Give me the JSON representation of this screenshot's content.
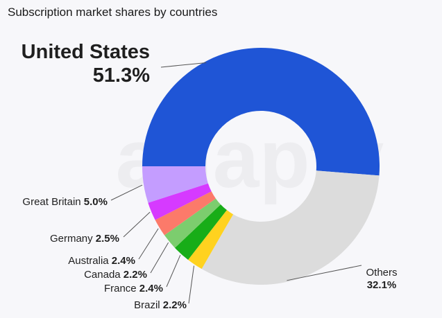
{
  "chart_data": {
    "type": "pie",
    "title": "Subscription market shares by countries",
    "watermark": "adapty",
    "slices": [
      {
        "label": "United States",
        "value": 51.3,
        "value_label": "51.3%",
        "color": "#1f55d6"
      },
      {
        "label": "Others",
        "value": 32.1,
        "value_label": "32.1%",
        "color": "#dcdcdc"
      },
      {
        "label": "Brazil",
        "value": 2.2,
        "value_label": "2.2%",
        "color": "#ffd21f"
      },
      {
        "label": "France",
        "value": 2.4,
        "value_label": "2.4%",
        "color": "#18ad18"
      },
      {
        "label": "Canada",
        "value": 2.2,
        "value_label": "2.2%",
        "color": "#7ccd6e"
      },
      {
        "label": "Australia",
        "value": 2.4,
        "value_label": "2.4%",
        "color": "#fc7a6a"
      },
      {
        "label": "Germany",
        "value": 2.5,
        "value_label": "2.5%",
        "color": "#d63aff"
      },
      {
        "label": "Great Britain",
        "value": 5.0,
        "value_label": "5.0%",
        "color": "#c49dff"
      }
    ]
  }
}
